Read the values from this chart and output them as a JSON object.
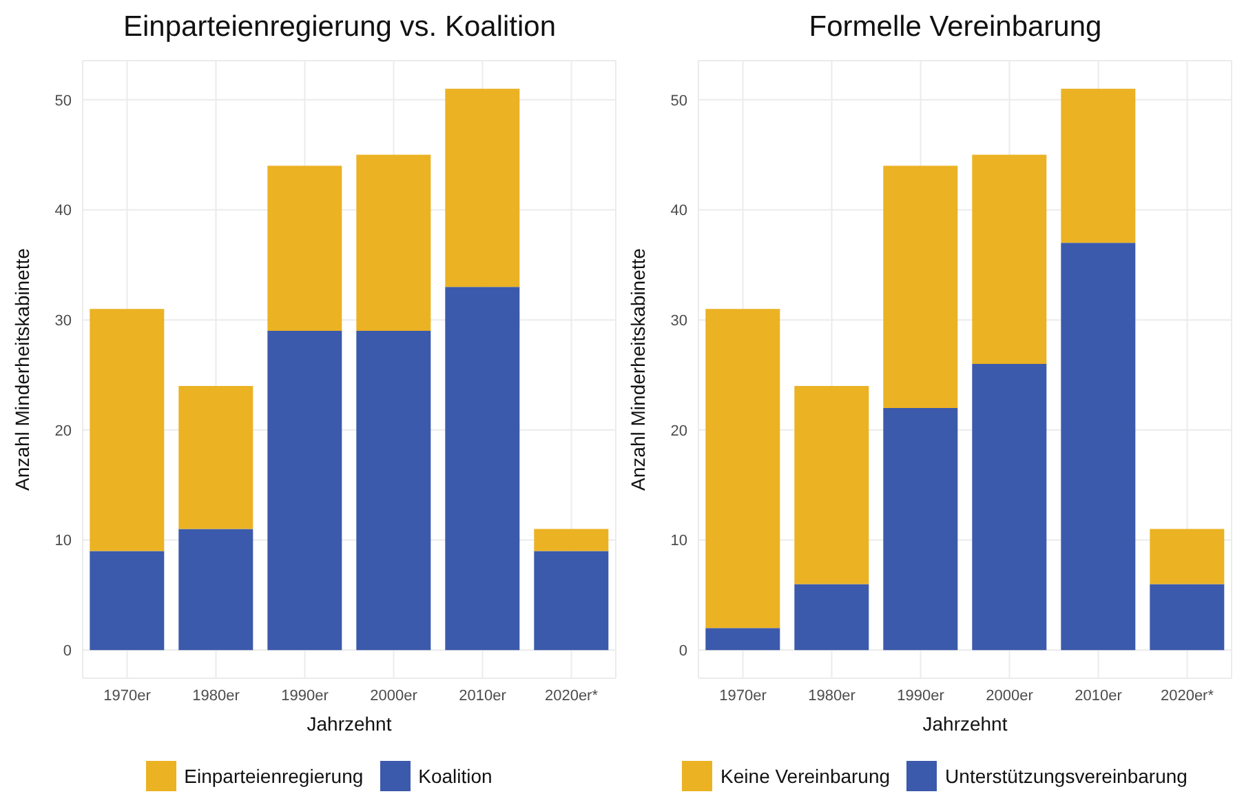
{
  "chart_data": [
    {
      "type": "bar",
      "title": "Einparteienregierung vs. Koalition",
      "xlabel": "Jahrzehnt",
      "ylabel": "Anzahl Minderheitskabinette",
      "categories": [
        "1970er",
        "1980er",
        "1990er",
        "2000er",
        "2010er",
        "2020er*"
      ],
      "stacked": true,
      "series": [
        {
          "name": "Koalition",
          "color": "#3c5aab",
          "values": [
            9,
            11,
            29,
            29,
            33,
            9
          ]
        },
        {
          "name": "Einparteienregierung",
          "color": "#ebb224",
          "values": [
            22,
            13,
            15,
            16,
            18,
            2
          ]
        }
      ],
      "ylim": [
        -2.55,
        53.55
      ],
      "yticks": [
        0,
        10,
        20,
        30,
        40,
        50
      ],
      "grid": true,
      "legend": "bottom"
    },
    {
      "type": "bar",
      "title": "Formelle Vereinbarung",
      "xlabel": "Jahrzehnt",
      "ylabel": "Anzahl Minderheitskabinette",
      "categories": [
        "1970er",
        "1980er",
        "1990er",
        "2000er",
        "2010er",
        "2020er*"
      ],
      "stacked": true,
      "series": [
        {
          "name": "Unterstützungsvereinbarung",
          "color": "#3c5aab",
          "values": [
            2,
            6,
            22,
            26,
            37,
            6
          ]
        },
        {
          "name": "Keine Vereinbarung",
          "color": "#ebb224",
          "values": [
            29,
            18,
            22,
            19,
            14,
            5
          ]
        }
      ],
      "ylim": [
        -2.55,
        53.55
      ],
      "yticks": [
        0,
        10,
        20,
        30,
        40,
        50
      ],
      "grid": true,
      "legend": "bottom"
    }
  ]
}
